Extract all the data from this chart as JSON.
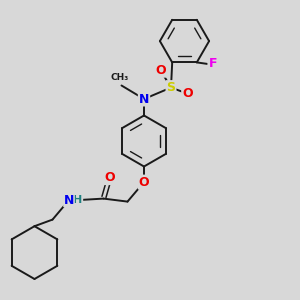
{
  "bg_color": "#d8d8d8",
  "bond_color": "#1a1a1a",
  "colors": {
    "N": "#0000ee",
    "O": "#ee0000",
    "S": "#cccc00",
    "F": "#ee00ee",
    "H_color": "#208080",
    "C": "#1a1a1a"
  },
  "font_size": 9,
  "bond_lw": 1.4
}
